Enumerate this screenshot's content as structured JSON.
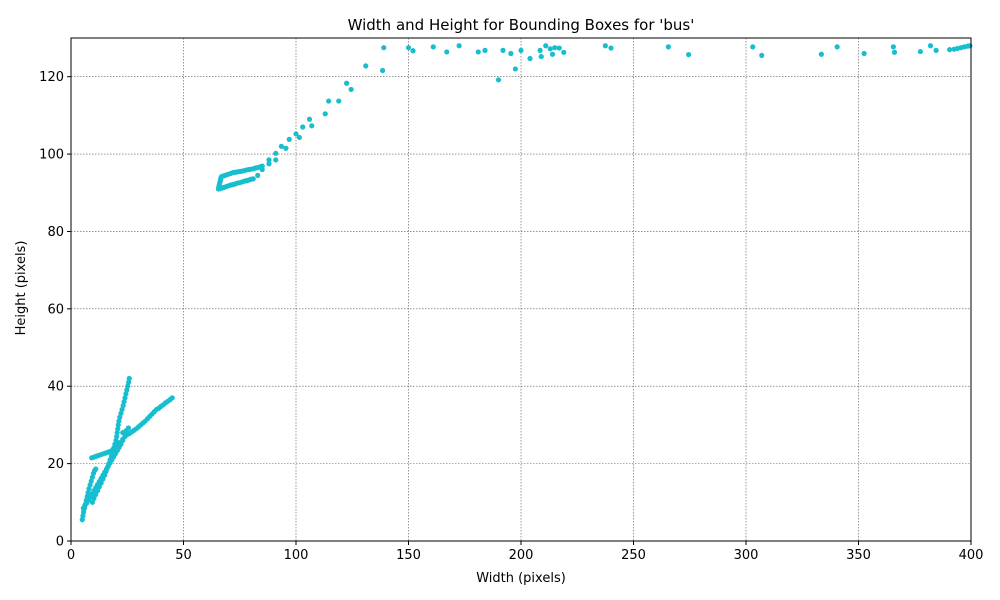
{
  "chart_data": {
    "type": "scatter",
    "title": "Width and Height for Bounding Boxes for 'bus'",
    "xlabel": "Width (pixels)",
    "ylabel": "Height (pixels)",
    "xlim": [
      0,
      400
    ],
    "ylim": [
      0,
      130
    ],
    "xticks": [
      0,
      50,
      100,
      150,
      200,
      250,
      300,
      350,
      400
    ],
    "yticks": [
      0,
      20,
      40,
      60,
      80,
      100,
      120
    ],
    "grid": true,
    "marker_color": "#17becf",
    "points": [
      [
        5,
        5.5
      ],
      [
        5.3,
        6.5
      ],
      [
        5.6,
        7.5
      ],
      [
        6,
        8.5
      ],
      [
        6.4,
        9.5
      ],
      [
        6.8,
        10.5
      ],
      [
        7.2,
        11.5
      ],
      [
        7.6,
        12.5
      ],
      [
        8,
        13.5
      ],
      [
        8.5,
        14.5
      ],
      [
        9,
        15.5
      ],
      [
        9.5,
        16.5
      ],
      [
        10,
        17.5
      ],
      [
        10.5,
        18.2
      ],
      [
        11,
        18.6
      ],
      [
        5.5,
        8.5
      ],
      [
        6.2,
        9.2
      ],
      [
        7,
        9.8
      ],
      [
        7.8,
        10.6
      ],
      [
        8.6,
        11.4
      ],
      [
        9.4,
        12.2
      ],
      [
        10.2,
        13
      ],
      [
        11,
        13.8
      ],
      [
        11.8,
        14.6
      ],
      [
        12.6,
        15.4
      ],
      [
        13.4,
        16.2
      ],
      [
        14.2,
        17
      ],
      [
        15,
        17.8
      ],
      [
        15.8,
        18.6
      ],
      [
        16.6,
        19.4
      ],
      [
        17.4,
        20.2
      ],
      [
        18.2,
        21
      ],
      [
        19,
        21.8
      ],
      [
        19.8,
        22.6
      ],
      [
        20.6,
        23.4
      ],
      [
        21.4,
        24.2
      ],
      [
        22.2,
        25
      ],
      [
        23,
        26
      ],
      [
        9.5,
        10
      ],
      [
        10.2,
        11
      ],
      [
        11,
        12
      ],
      [
        11.8,
        13
      ],
      [
        12.6,
        14
      ],
      [
        13.4,
        15
      ],
      [
        14.2,
        16
      ],
      [
        15,
        17
      ],
      [
        15.6,
        18
      ],
      [
        16.2,
        19
      ],
      [
        16.8,
        20
      ],
      [
        17.4,
        21
      ],
      [
        18,
        22
      ],
      [
        18.5,
        23
      ],
      [
        19,
        24
      ],
      [
        9.2,
        21.5
      ],
      [
        10.2,
        21.7
      ],
      [
        11.2,
        21.9
      ],
      [
        12.2,
        22.1
      ],
      [
        13.2,
        22.3
      ],
      [
        14.2,
        22.5
      ],
      [
        15.2,
        22.7
      ],
      [
        16.2,
        22.9
      ],
      [
        17.2,
        23.1
      ],
      [
        18.2,
        23.4
      ],
      [
        19.2,
        23.7
      ],
      [
        20.2,
        24
      ],
      [
        19.5,
        25
      ],
      [
        20,
        26
      ],
      [
        20.3,
        27
      ],
      [
        20.5,
        28
      ],
      [
        20.8,
        29
      ],
      [
        21,
        30
      ],
      [
        21.3,
        31
      ],
      [
        21.7,
        32
      ],
      [
        22.2,
        33
      ],
      [
        22.7,
        34
      ],
      [
        23.2,
        35
      ],
      [
        23.6,
        36
      ],
      [
        24,
        37
      ],
      [
        24.4,
        38
      ],
      [
        24.8,
        39
      ],
      [
        25.2,
        40
      ],
      [
        25.6,
        41
      ],
      [
        25.9,
        42
      ],
      [
        21,
        25
      ],
      [
        22,
        25.5
      ],
      [
        23,
        26.3
      ],
      [
        24,
        27
      ],
      [
        25,
        27.5
      ],
      [
        26,
        27.8
      ],
      [
        27,
        28.2
      ],
      [
        28,
        28.6
      ],
      [
        29,
        29
      ],
      [
        30,
        29.5
      ],
      [
        31,
        30
      ],
      [
        32,
        30.5
      ],
      [
        33,
        31
      ],
      [
        34,
        31.6
      ],
      [
        35,
        32.2
      ],
      [
        36,
        32.8
      ],
      [
        37,
        33.4
      ],
      [
        38,
        34
      ],
      [
        39,
        34.3
      ],
      [
        40,
        34.8
      ],
      [
        41,
        35.2
      ],
      [
        42,
        35.7
      ],
      [
        43,
        36.1
      ],
      [
        44,
        36.5
      ],
      [
        45,
        37
      ],
      [
        23,
        28
      ],
      [
        24.5,
        28.5
      ],
      [
        25.5,
        29.2
      ],
      [
        65.5,
        91
      ],
      [
        65.7,
        91.5
      ],
      [
        65.9,
        92
      ],
      [
        66.1,
        92.5
      ],
      [
        66.3,
        93
      ],
      [
        66.5,
        93.5
      ],
      [
        66.7,
        94
      ],
      [
        67,
        94.2
      ],
      [
        68,
        94.4
      ],
      [
        69,
        94.6
      ],
      [
        70,
        94.8
      ],
      [
        71,
        95
      ],
      [
        72,
        95.2
      ],
      [
        73,
        95.3
      ],
      [
        74,
        95.4
      ],
      [
        75,
        95.5
      ],
      [
        76,
        95.6
      ],
      [
        77,
        95.7
      ],
      [
        78,
        95.9
      ],
      [
        79,
        96
      ],
      [
        80,
        96.1
      ],
      [
        81,
        96.2
      ],
      [
        82,
        96.4
      ],
      [
        83,
        96.5
      ],
      [
        84,
        96.7
      ],
      [
        85,
        96.9
      ],
      [
        66,
        91
      ],
      [
        67,
        91.2
      ],
      [
        68,
        91.4
      ],
      [
        69,
        91.6
      ],
      [
        70,
        91.8
      ],
      [
        71,
        92
      ],
      [
        72,
        92.1
      ],
      [
        73,
        92.3
      ],
      [
        74,
        92.5
      ],
      [
        75,
        92.6
      ],
      [
        76,
        92.8
      ],
      [
        77,
        93
      ],
      [
        78,
        93.1
      ],
      [
        79,
        93.3
      ],
      [
        80,
        93.5
      ],
      [
        81,
        93.6
      ],
      [
        83,
        94.5
      ],
      [
        85,
        96
      ],
      [
        88,
        97.5
      ],
      [
        88,
        98.5
      ],
      [
        91,
        98.5
      ],
      [
        91,
        100.2
      ],
      [
        93.5,
        102
      ],
      [
        95.5,
        101.5
      ],
      [
        97,
        103.8
      ],
      [
        100,
        105.2
      ],
      [
        101.5,
        104.3
      ],
      [
        103,
        107
      ],
      [
        106,
        109
      ],
      [
        107,
        107.3
      ],
      [
        113,
        110.4
      ],
      [
        114.5,
        113.7
      ],
      [
        119,
        113.7
      ],
      [
        122.5,
        118.3
      ],
      [
        124.5,
        116.7
      ],
      [
        131,
        122.8
      ],
      [
        138.5,
        121.6
      ],
      [
        139,
        127.5
      ],
      [
        150,
        127.5
      ],
      [
        152,
        126.7
      ],
      [
        161,
        127.7
      ],
      [
        167,
        126.4
      ],
      [
        172.5,
        128
      ],
      [
        181,
        126.4
      ],
      [
        184,
        126.8
      ],
      [
        190,
        119.2
      ],
      [
        192,
        126.8
      ],
      [
        195.5,
        126
      ],
      [
        197.5,
        122
      ],
      [
        200,
        126.8
      ],
      [
        204,
        124.7
      ],
      [
        208.5,
        126.8
      ],
      [
        209,
        125.2
      ],
      [
        211,
        128
      ],
      [
        213,
        127.2
      ],
      [
        214,
        125.8
      ],
      [
        215,
        127.5
      ],
      [
        217,
        127.4
      ],
      [
        219,
        126.3
      ],
      [
        237.5,
        128
      ],
      [
        240,
        127.4
      ],
      [
        265.5,
        127.7
      ],
      [
        274.5,
        125.7
      ],
      [
        303,
        127.7
      ],
      [
        307,
        125.5
      ],
      [
        333.5,
        125.8
      ],
      [
        340.5,
        127.7
      ],
      [
        352.5,
        126
      ],
      [
        365.5,
        127.7
      ],
      [
        366,
        126.3
      ],
      [
        377.5,
        126.5
      ],
      [
        382,
        128
      ],
      [
        384.5,
        126.8
      ],
      [
        390.5,
        127
      ],
      [
        392.5,
        127.1
      ],
      [
        394,
        127.3
      ],
      [
        395.5,
        127.5
      ],
      [
        397,
        127.7
      ],
      [
        398.5,
        127.9
      ],
      [
        399.5,
        128
      ]
    ]
  }
}
